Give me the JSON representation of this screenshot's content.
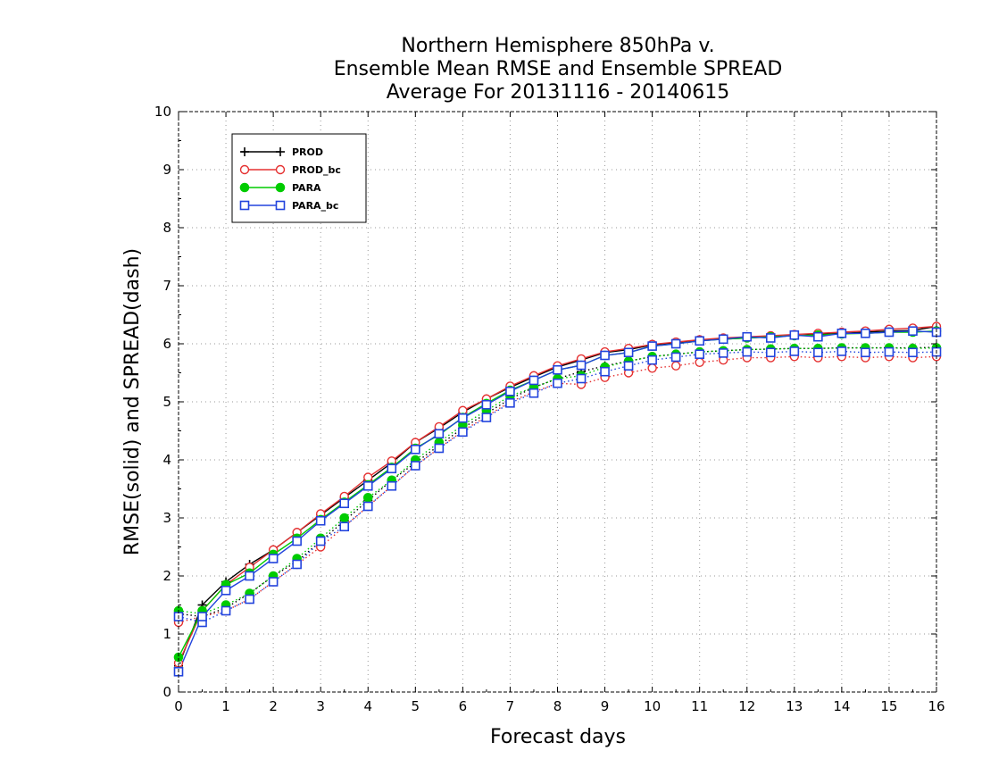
{
  "chart_data": {
    "type": "line",
    "title_lines": [
      "Northern Hemisphere 850hPa v.",
      "Ensemble Mean RMSE and Ensemble SPREAD",
      "Average For 20131116 - 20140615"
    ],
    "xlabel": "Forecast days",
    "ylabel": "RMSE(solid) and SPREAD(dash)",
    "xlim": [
      0,
      16
    ],
    "ylim": [
      0,
      10
    ],
    "xticks": [
      0,
      1,
      2,
      3,
      4,
      5,
      6,
      7,
      8,
      9,
      10,
      11,
      12,
      13,
      14,
      15,
      16
    ],
    "yticks": [
      0,
      1,
      2,
      3,
      4,
      5,
      6,
      7,
      8,
      9,
      10
    ],
    "grid": true,
    "legend_position": "top-left",
    "x": [
      0,
      0.5,
      1,
      1.5,
      2,
      2.5,
      3,
      3.5,
      4,
      4.5,
      5,
      5.5,
      6,
      6.5,
      7,
      7.5,
      8,
      8.5,
      9,
      9.5,
      10,
      10.5,
      11,
      11.5,
      12,
      12.5,
      13,
      13.5,
      14,
      14.5,
      15,
      15.5,
      16
    ],
    "series": [
      {
        "name": "PROD",
        "color": "#000000",
        "marker": "plus",
        "rmse": [
          0.45,
          1.5,
          1.9,
          2.2,
          2.45,
          2.75,
          3.05,
          3.35,
          3.65,
          3.95,
          4.3,
          4.55,
          4.82,
          5.05,
          5.25,
          5.43,
          5.6,
          5.72,
          5.85,
          5.9,
          5.98,
          6.02,
          6.06,
          6.08,
          6.1,
          6.12,
          6.14,
          6.16,
          6.18,
          6.2,
          6.22,
          6.23,
          6.3
        ],
        "spread": [
          1.35,
          1.3,
          1.45,
          1.7,
          2.0,
          2.25,
          2.6,
          2.95,
          3.3,
          3.65,
          3.95,
          4.25,
          4.55,
          4.8,
          5.05,
          5.25,
          5.4,
          5.52,
          5.62,
          5.7,
          5.78,
          5.82,
          5.86,
          5.88,
          5.9,
          5.91,
          5.92,
          5.92,
          5.93,
          5.93,
          5.93,
          5.93,
          5.94
        ]
      },
      {
        "name": "PROD_bc",
        "color": "#e53030",
        "marker": "circle-open",
        "rmse": [
          0.5,
          1.4,
          1.85,
          2.15,
          2.45,
          2.75,
          3.07,
          3.37,
          3.7,
          3.98,
          4.3,
          4.57,
          4.85,
          5.05,
          5.27,
          5.45,
          5.62,
          5.74,
          5.86,
          5.92,
          5.99,
          6.03,
          6.07,
          6.1,
          6.12,
          6.14,
          6.16,
          6.18,
          6.2,
          6.22,
          6.25,
          6.27,
          6.3
        ],
        "spread": [
          1.2,
          1.3,
          1.4,
          1.6,
          1.9,
          2.2,
          2.5,
          2.85,
          3.2,
          3.55,
          3.9,
          4.2,
          4.5,
          4.75,
          5.0,
          5.17,
          5.32,
          5.3,
          5.42,
          5.5,
          5.58,
          5.62,
          5.68,
          5.72,
          5.76,
          5.76,
          5.78,
          5.76,
          5.78,
          5.76,
          5.78,
          5.76,
          5.78
        ]
      },
      {
        "name": "PARA",
        "color": "#00cc00",
        "marker": "circle-filled",
        "rmse": [
          0.6,
          1.4,
          1.85,
          2.05,
          2.37,
          2.65,
          2.97,
          3.27,
          3.57,
          3.87,
          4.2,
          4.43,
          4.73,
          4.97,
          5.2,
          5.37,
          5.55,
          5.63,
          5.8,
          5.85,
          5.96,
          6.0,
          6.05,
          6.08,
          6.1,
          6.12,
          6.14,
          6.15,
          6.17,
          6.18,
          6.2,
          6.2,
          6.22
        ],
        "spread": [
          1.4,
          1.35,
          1.5,
          1.7,
          2.0,
          2.3,
          2.65,
          3.0,
          3.35,
          3.65,
          4.0,
          4.3,
          4.6,
          4.85,
          5.1,
          5.25,
          5.4,
          5.45,
          5.6,
          5.7,
          5.78,
          5.82,
          5.86,
          5.88,
          5.9,
          5.91,
          5.92,
          5.92,
          5.93,
          5.93,
          5.93,
          5.92,
          5.93
        ]
      },
      {
        "name": "PARA_bc",
        "color": "#2244dd",
        "marker": "square-open",
        "rmse": [
          0.35,
          1.3,
          1.75,
          2.0,
          2.3,
          2.6,
          2.95,
          3.25,
          3.55,
          3.85,
          4.18,
          4.45,
          4.72,
          4.95,
          5.18,
          5.37,
          5.55,
          5.63,
          5.8,
          5.85,
          5.96,
          6.0,
          6.05,
          6.08,
          6.12,
          6.1,
          6.15,
          6.12,
          6.18,
          6.18,
          6.2,
          6.22,
          6.2
        ],
        "spread": [
          1.3,
          1.2,
          1.4,
          1.6,
          1.9,
          2.2,
          2.6,
          2.85,
          3.2,
          3.55,
          3.9,
          4.2,
          4.48,
          4.73,
          4.98,
          5.15,
          5.32,
          5.4,
          5.52,
          5.62,
          5.72,
          5.77,
          5.82,
          5.84,
          5.86,
          5.85,
          5.87,
          5.85,
          5.87,
          5.85,
          5.86,
          5.85,
          5.86
        ]
      }
    ]
  }
}
